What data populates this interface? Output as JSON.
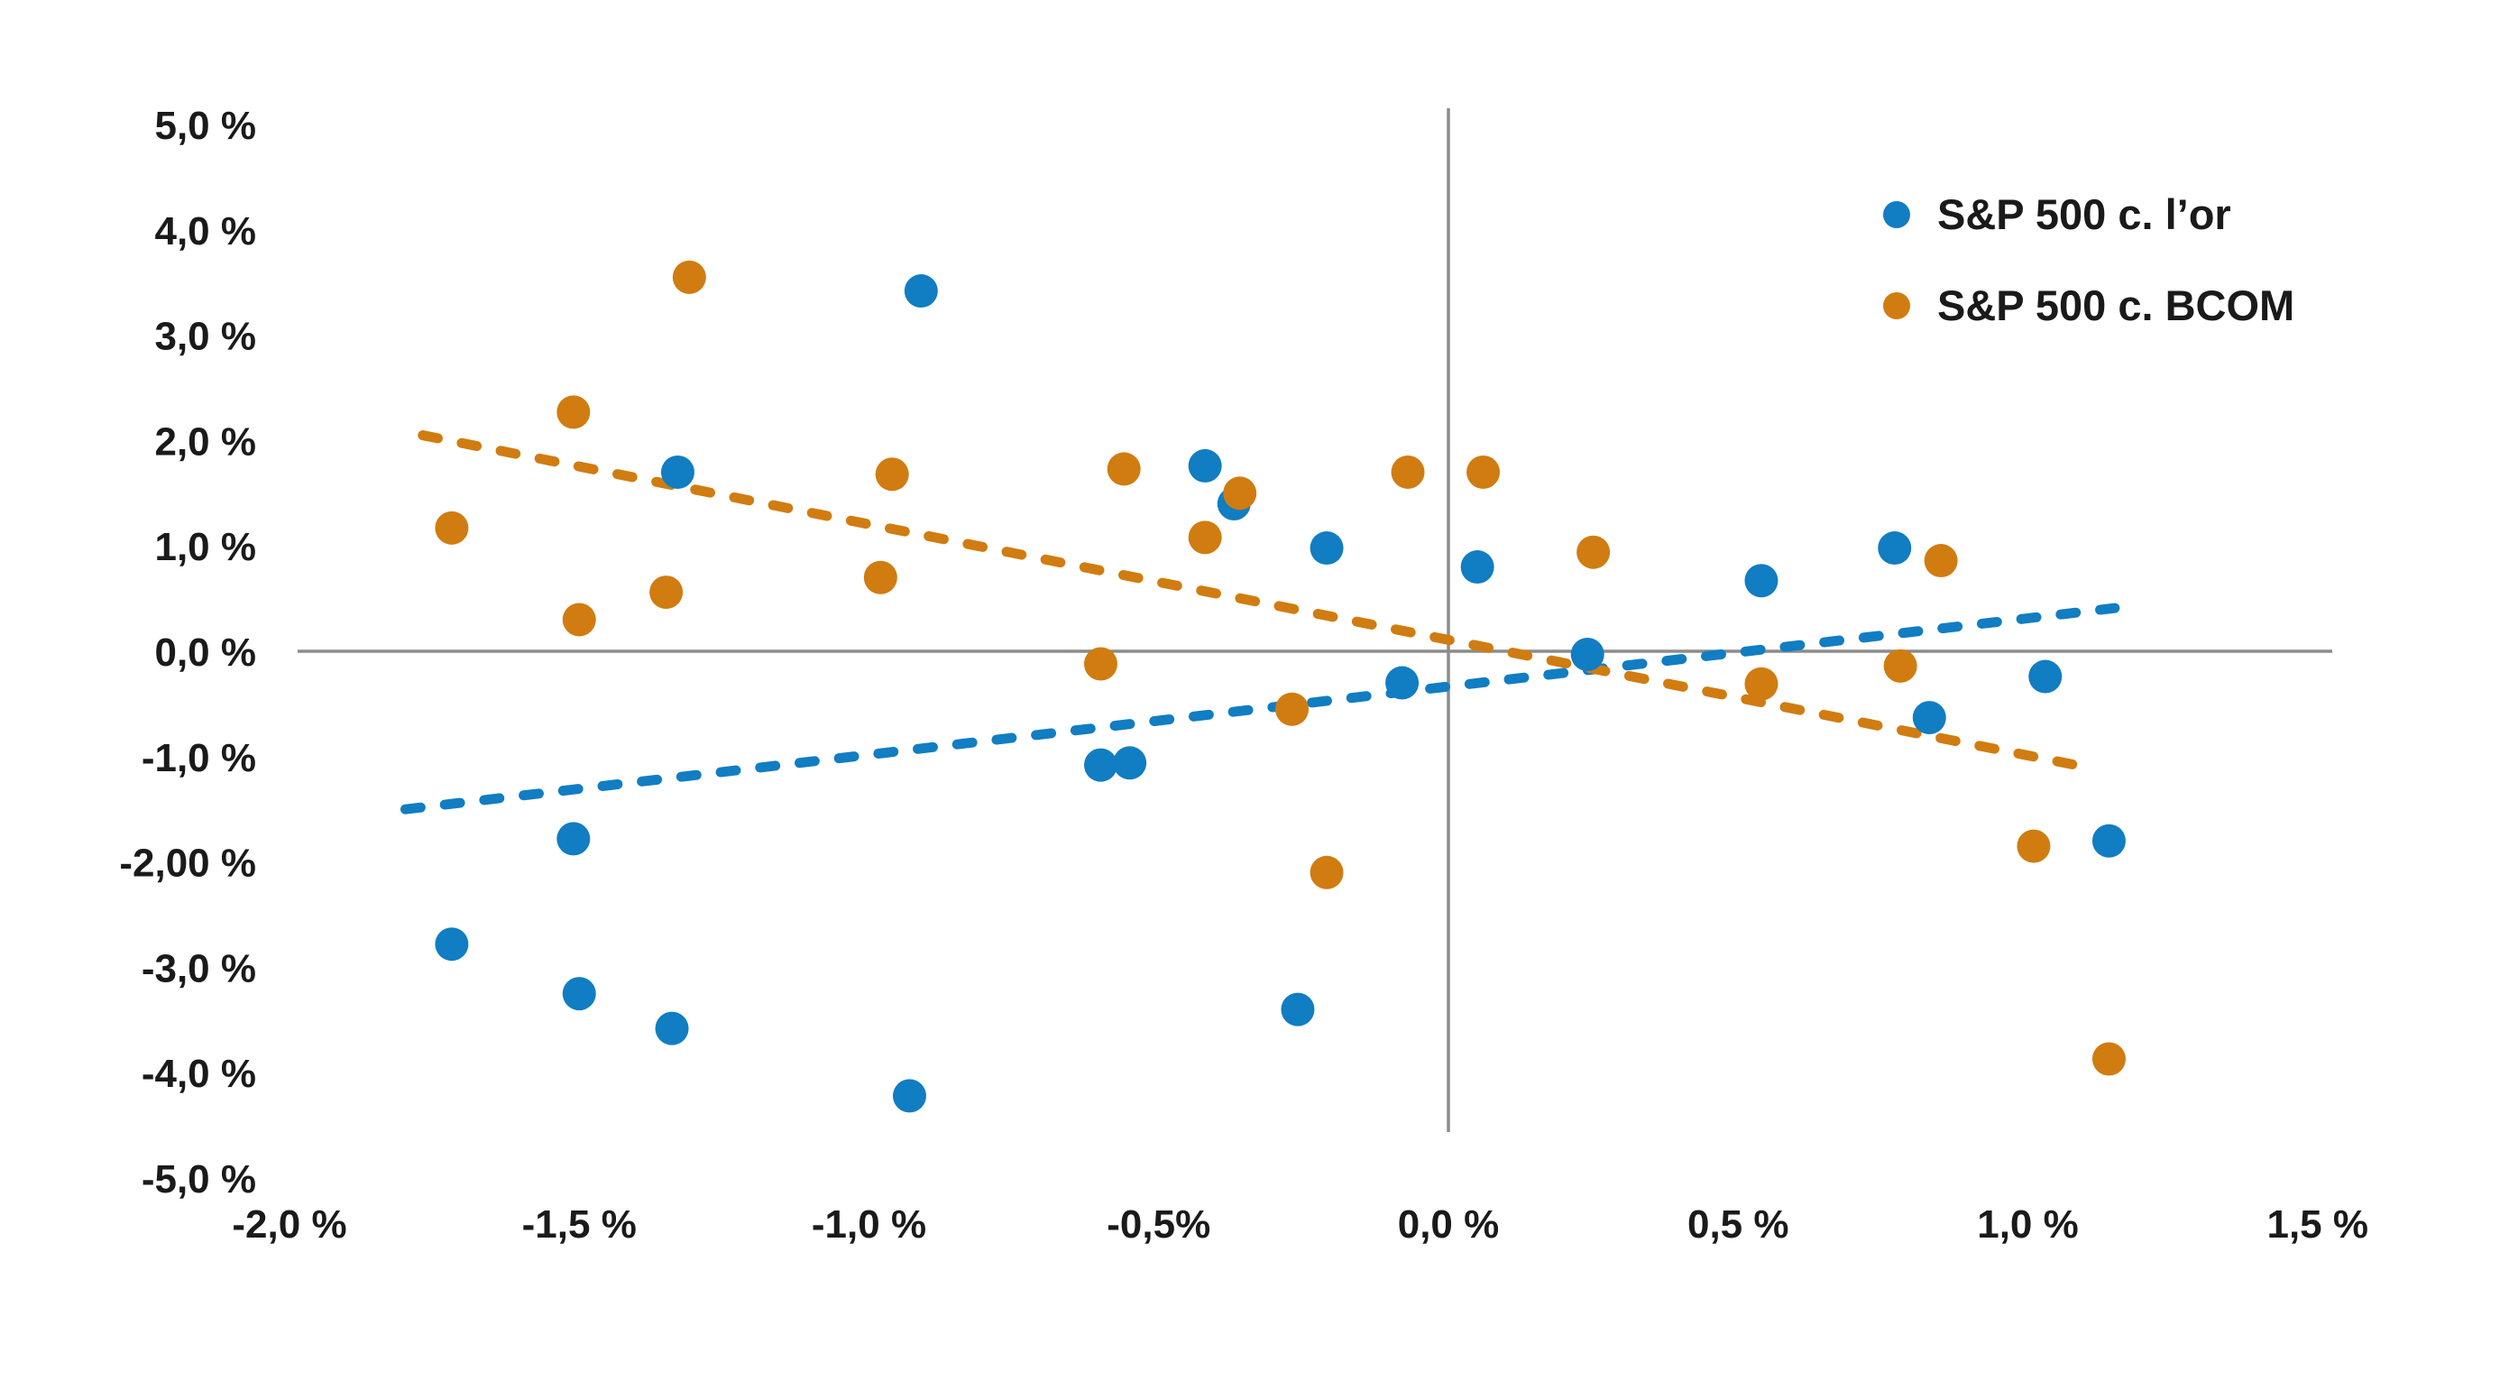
{
  "colors": {
    "axis": "#8c8c8c",
    "text": "#1a1a1a",
    "blue": "#117dc2",
    "orange": "#d07c10"
  },
  "legend": {
    "items": [
      {
        "label": "S&P 500 c. l’or",
        "color": "#117dc2"
      },
      {
        "label": "S&P 500 c. BCOM",
        "color": "#d07c10"
      }
    ]
  },
  "chart_data": {
    "type": "scatter",
    "title": "",
    "xlabel": "",
    "ylabel": "",
    "grid": false,
    "legend_position": "top-right",
    "x_axis": {
      "min": -2.0,
      "max": 1.5,
      "tick_step": 0.5,
      "tick_labels": [
        "-2,0 %",
        "-1,5 %",
        "-1,0 %",
        "-0,5%",
        "0,0 %",
        "0,5 %",
        "1,0 %",
        "1,5 %"
      ]
    },
    "y_axis": {
      "min": -5.0,
      "max": 5.0,
      "tick_step": 1.0,
      "tick_labels": [
        "5,0 %",
        "4,0 %",
        "3,0 %",
        "2,0 %",
        "1,0 %",
        "0,0 %",
        "-1,0 %",
        "-2,00 %",
        "-3,0 %",
        "-4,0 %",
        "-5,0 %"
      ]
    },
    "series": [
      {
        "name": "S&P 500 c. l’or",
        "color": "#117dc2",
        "trend": {
          "x1": -1.8,
          "y1": -1.5,
          "x2": 1.15,
          "y2": 0.41
        },
        "points": [
          [
            -0.91,
            3.42
          ],
          [
            -1.33,
            1.7
          ],
          [
            -0.42,
            1.76
          ],
          [
            -0.37,
            1.4
          ],
          [
            -0.21,
            0.98
          ],
          [
            0.05,
            0.8
          ],
          [
            0.54,
            0.67
          ],
          [
            0.77,
            0.98
          ],
          [
            0.24,
            -0.03
          ],
          [
            -0.08,
            -0.3
          ],
          [
            0.83,
            -0.63
          ],
          [
            1.03,
            -0.24
          ],
          [
            1.14,
            -1.8
          ],
          [
            -0.6,
            -1.08
          ],
          [
            -0.55,
            -1.06
          ],
          [
            -1.51,
            -1.78
          ],
          [
            -1.72,
            -2.78
          ],
          [
            -1.5,
            -3.25
          ],
          [
            -1.34,
            -3.58
          ],
          [
            -0.93,
            -4.22
          ],
          [
            -0.26,
            -3.4
          ]
        ]
      },
      {
        "name": "S&P 500 c. BCOM",
        "color": "#d07c10",
        "trend": {
          "x1": -1.77,
          "y1": 2.05,
          "x2": 1.11,
          "y2": -1.11
        },
        "points": [
          [
            -1.31,
            3.55
          ],
          [
            -1.51,
            2.27
          ],
          [
            -1.72,
            1.17
          ],
          [
            -1.35,
            0.56
          ],
          [
            -1.5,
            0.3
          ],
          [
            -0.96,
            1.68
          ],
          [
            -0.98,
            0.7
          ],
          [
            -0.56,
            1.73
          ],
          [
            -0.36,
            1.5
          ],
          [
            -0.42,
            1.08
          ],
          [
            -0.07,
            1.7
          ],
          [
            0.06,
            1.7
          ],
          [
            0.25,
            0.94
          ],
          [
            0.85,
            0.86
          ],
          [
            -0.6,
            -0.12
          ],
          [
            -0.27,
            -0.55
          ],
          [
            0.54,
            -0.31
          ],
          [
            0.78,
            -0.14
          ],
          [
            -0.21,
            -2.1
          ],
          [
            1.01,
            -1.85
          ],
          [
            1.14,
            -3.87
          ]
        ]
      }
    ]
  }
}
